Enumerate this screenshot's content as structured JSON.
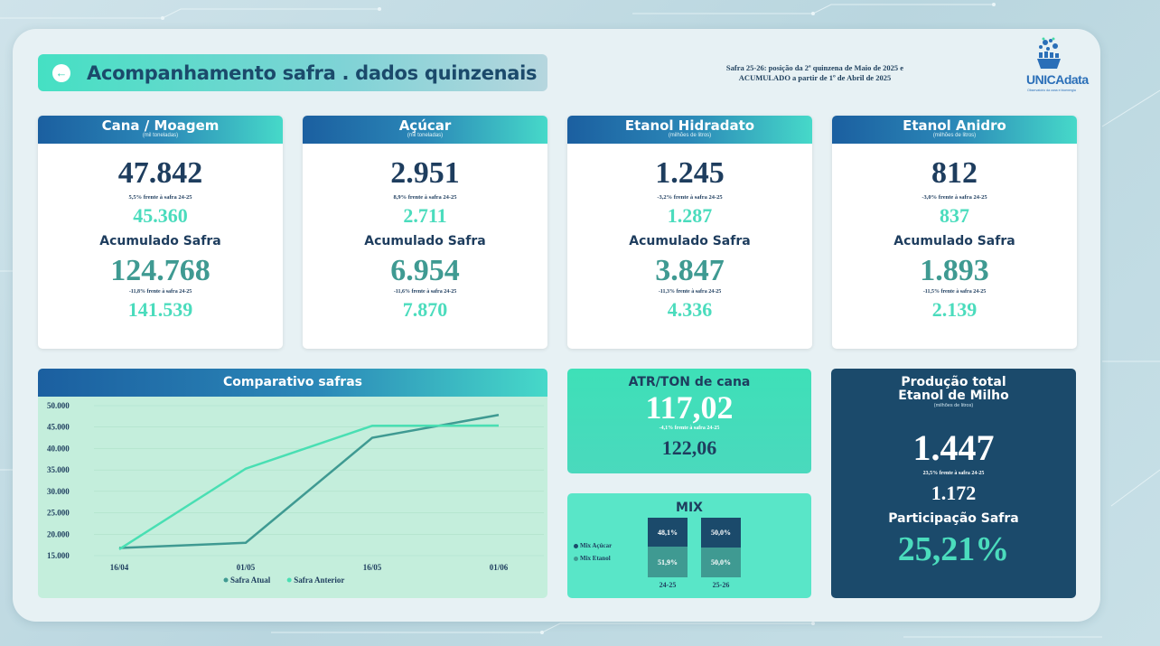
{
  "header": {
    "title": "Acompanhamento safra . dados quinzenais",
    "subtitle_line1": "Safra 25-26: posição da 2ª quinzena de Maio de 2025 e",
    "subtitle_line2": "ACUMULADO a partir de 1º de Abril de 2025",
    "logo_text": "UNICAdata",
    "logo_sub": "Observatório da cana e bioenergia"
  },
  "accumulated_label": "Acumulado Safra",
  "cards": [
    {
      "title": "Cana / Moagem",
      "unit": "(mil toneladas)",
      "value": "47.842",
      "pct": "5,5% frente à safra 24-25",
      "prev": "45.360",
      "acc_value": "124.768",
      "acc_pct": "-11,8% frente à safra 24-25",
      "acc_prev": "141.539"
    },
    {
      "title": "Açúcar",
      "unit": "(mil toneladas)",
      "value": "2.951",
      "pct": "8,9% frente à safra 24-25",
      "prev": "2.711",
      "acc_value": "6.954",
      "acc_pct": "-11,6% frente à safra 24-25",
      "acc_prev": "7.870"
    },
    {
      "title": "Etanol Hidradato",
      "unit": "(milhões de litros)",
      "value": "1.245",
      "pct": "-3,2% frente à safra 24-25",
      "prev": "1.287",
      "acc_value": "3.847",
      "acc_pct": "-11,3% frente à safra 24-25",
      "acc_prev": "4.336"
    },
    {
      "title": "Etanol Anidro",
      "unit": "(milhões de litros)",
      "value": "812",
      "pct": "-3,0% frente à safra 24-25",
      "prev": "837",
      "acc_value": "1.893",
      "acc_pct": "-11,5% frente à safra 24-25",
      "acc_prev": "2.139"
    }
  ],
  "chart_data": {
    "type": "line",
    "title": "Comparativo safras",
    "categories": [
      "16/04",
      "01/05",
      "16/05",
      "01/06"
    ],
    "x": [
      0,
      1,
      2,
      3
    ],
    "series": [
      {
        "name": "Safra Atual",
        "color": "#3f9a92",
        "points": [
          [
            0,
            16800
          ],
          [
            1,
            18000
          ],
          [
            2,
            42500
          ],
          [
            3,
            47842
          ]
        ]
      },
      {
        "name": "Safra Anterior",
        "color": "#49dfb3",
        "points": [
          [
            0,
            16500
          ],
          [
            1,
            35300
          ],
          [
            2,
            45300
          ],
          [
            3,
            45360
          ]
        ]
      }
    ],
    "yticks": [
      "50.000",
      "45.000",
      "40.000",
      "35.000",
      "30.000",
      "25.000",
      "20.000",
      "15.000"
    ],
    "ytick_values": [
      50000,
      45000,
      40000,
      35000,
      30000,
      25000,
      20000,
      15000
    ],
    "ylim": [
      15000,
      50000
    ],
    "grid": true,
    "legend": "bottom",
    "xlabel": "",
    "ylabel": ""
  },
  "atr": {
    "title": "ATR/TON de cana",
    "value": "117,02",
    "pct": "-4,1% frente à safra 24-25",
    "prev": "122,06"
  },
  "mix": {
    "title": "MIX",
    "legend_acucar": "Mix Açúcar",
    "legend_etanol": "Mix Etanol",
    "bars": [
      {
        "label": "24-25",
        "acucar": "48,1%",
        "etanol": "51,9%",
        "acucar_value": 48.1,
        "etanol_value": 51.9
      },
      {
        "label": "25-26",
        "acucar": "50,0%",
        "etanol": "50,0%",
        "acucar_value": 50.0,
        "etanol_value": 50.0
      }
    ],
    "colors": {
      "acucar": "#1b4a6b",
      "etanol": "#3f9a92"
    }
  },
  "milho": {
    "title_line1": "Produção total",
    "title_line2": "Etanol de Milho",
    "unit": "(milhões de litros)",
    "value": "1.447",
    "pct": "23,5% frente à safra 24-25",
    "prev": "1.172",
    "part_label": "Participação Safra",
    "part_value": "25,21%"
  }
}
